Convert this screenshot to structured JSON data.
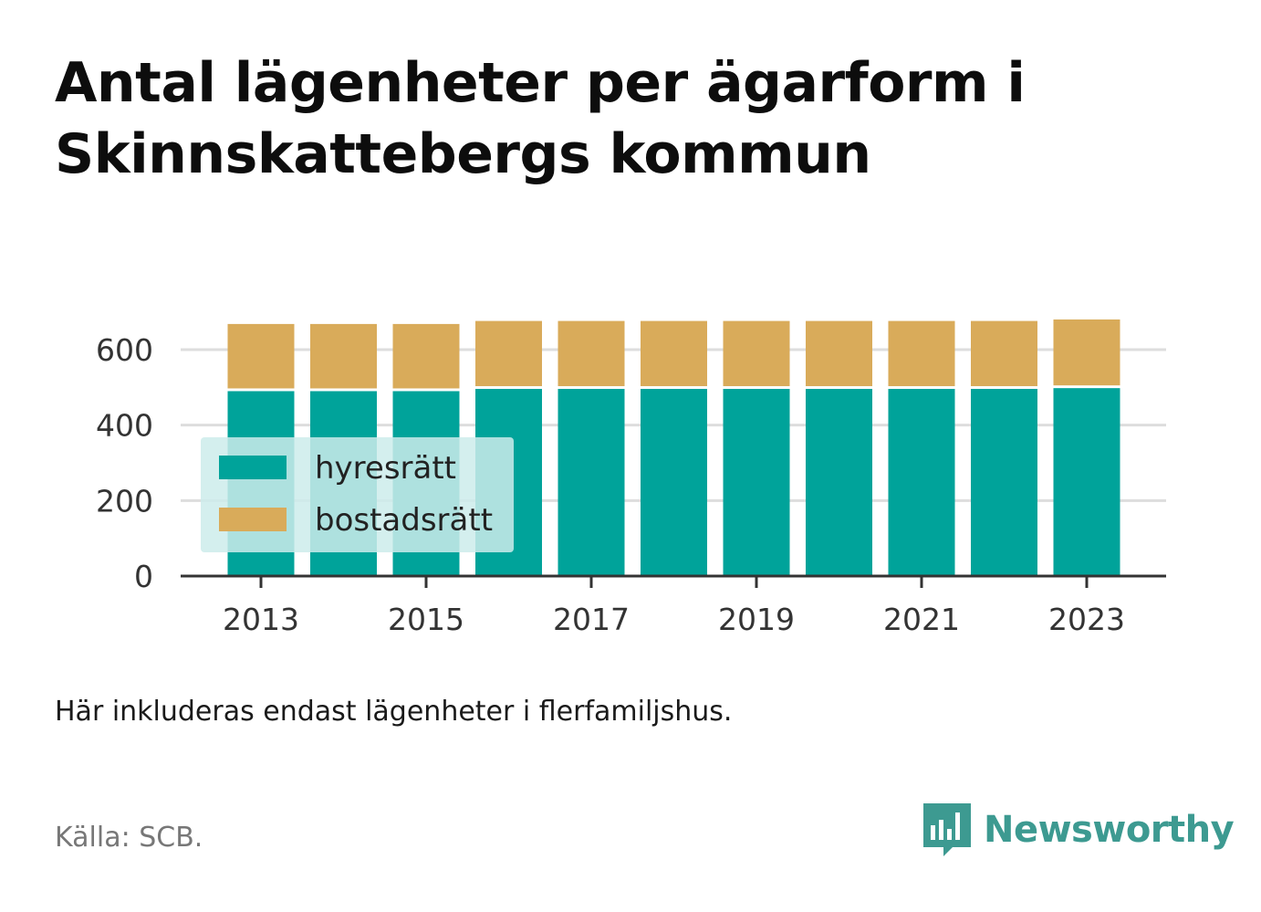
{
  "header": {
    "title_line1": "Antal lägenheter per ägarform i",
    "title_line2": "Skinnskattebergs kommun"
  },
  "footer": {
    "note": "Här inkluderas endast lägenheter i flerfamiljshus.",
    "source": "Källa: SCB.",
    "brand": "Newsworthy"
  },
  "colors": {
    "hyresratt": "#00a39a",
    "bostadsratt": "#d9ab5a",
    "grid": "#dddddd",
    "axis": "#333333",
    "tick_text": "#333333",
    "legend_bg": "#cdeceb",
    "brand": "#3d9a91"
  },
  "chart_data": {
    "type": "bar",
    "stacked": true,
    "categories": [
      "2013",
      "2014",
      "2015",
      "2016",
      "2017",
      "2018",
      "2019",
      "2020",
      "2021",
      "2022",
      "2023"
    ],
    "x_tick_labels": [
      "2013",
      "2015",
      "2017",
      "2019",
      "2021",
      "2023"
    ],
    "series": [
      {
        "name": "hyresrätt",
        "values": [
          490,
          490,
          490,
          496,
          496,
          496,
          496,
          496,
          496,
          496,
          498
        ]
      },
      {
        "name": "bostadsrätt",
        "values": [
          178,
          178,
          178,
          180,
          180,
          180,
          180,
          180,
          180,
          180,
          182
        ]
      }
    ],
    "y_ticks": [
      0,
      200,
      400,
      600
    ],
    "ylim": [
      0,
      680
    ],
    "grid": true,
    "legend_position": "bottom-left"
  }
}
